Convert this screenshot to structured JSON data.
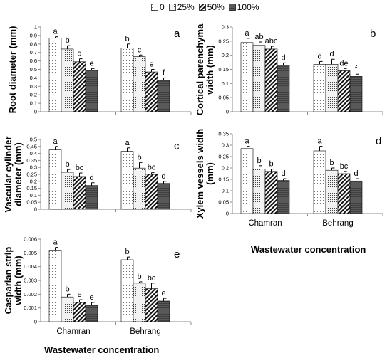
{
  "legend": [
    {
      "label": "0",
      "pattern": "dots-light"
    },
    {
      "label": "25%",
      "pattern": "dots-dense"
    },
    {
      "label": "50%",
      "pattern": "diag"
    },
    {
      "label": "100%",
      "pattern": "dark"
    }
  ],
  "colors": {
    "dots-light": "#ffffff",
    "dots-dense": "#f2f2f2",
    "diag": "#ffffff",
    "dark": "#595959",
    "axis": "#8c8c8c",
    "grid": "#000000"
  },
  "x_axis_titles": [
    "Wastewater concentration",
    "Wastewater concentration"
  ],
  "chart_data": [
    {
      "id": "a",
      "type": "bar",
      "panel_letter": "a",
      "ylabel": "Root diameter (mm)",
      "categories": [
        "Chamran",
        "Behrang"
      ],
      "show_category_labels": false,
      "ylim": [
        0,
        1
      ],
      "yticks": [
        "0",
        "0.1",
        "0.2",
        "0.3",
        "0.4",
        "0.5",
        "0.6",
        "0.7",
        "0.8",
        "0.9",
        "1"
      ],
      "series": [
        {
          "name": "0",
          "values": [
            0.87,
            0.75
          ],
          "errors": [
            0.015,
            0.05
          ],
          "letters": [
            "a",
            "b"
          ]
        },
        {
          "name": "25%",
          "values": [
            0.74,
            0.65
          ],
          "errors": [
            0.04,
            0.02
          ],
          "letters": [
            "b",
            "c"
          ]
        },
        {
          "name": "50%",
          "values": [
            0.59,
            0.47
          ],
          "errors": [
            0.035,
            0.03
          ],
          "letters": [
            "d",
            "e"
          ]
        },
        {
          "name": "100%",
          "values": [
            0.49,
            0.37
          ],
          "errors": [
            0.02,
            0.03
          ],
          "letters": [
            "e",
            "f"
          ]
        }
      ]
    },
    {
      "id": "b",
      "type": "bar",
      "panel_letter": "b",
      "ylabel": "Cortical parenchyma width (mm)",
      "categories": [
        "Chamran",
        "Behrang"
      ],
      "show_category_labels": false,
      "ylim": [
        0,
        0.3
      ],
      "yticks": [
        "0",
        "0.05",
        "0.1",
        "0.15",
        "0.2",
        "0.25",
        "0.3"
      ],
      "series": [
        {
          "name": "0",
          "values": [
            0.245,
            0.168
          ],
          "errors": [
            0.015,
            0.01
          ],
          "letters": [
            "a",
            "d"
          ]
        },
        {
          "name": "25%",
          "values": [
            0.235,
            0.168
          ],
          "errors": [
            0.012,
            0.018
          ],
          "letters": [
            "ab",
            "d"
          ]
        },
        {
          "name": "50%",
          "values": [
            0.222,
            0.145
          ],
          "errors": [
            0.01,
            0.008
          ],
          "letters": [
            "abc",
            "de"
          ]
        },
        {
          "name": "100%",
          "values": [
            0.165,
            0.125
          ],
          "errors": [
            0.008,
            0.008
          ],
          "letters": [
            "d",
            "f"
          ]
        }
      ]
    },
    {
      "id": "c",
      "type": "bar",
      "panel_letter": "c",
      "ylabel": "Vascular cylinder diameter (mm)",
      "categories": [
        "Chamran",
        "Behrang"
      ],
      "show_category_labels": false,
      "ylim": [
        0,
        0.5
      ],
      "yticks": [
        "0",
        "0.05",
        "0.1",
        "0.15",
        "0.2",
        "0.25",
        "0.3",
        "0.35",
        "0.4",
        "0.45",
        "0.5"
      ],
      "series": [
        {
          "name": "0",
          "values": [
            0.425,
            0.415
          ],
          "errors": [
            0.025,
            0.025
          ],
          "letters": [
            "a",
            "a"
          ]
        },
        {
          "name": "25%",
          "values": [
            0.265,
            0.295
          ],
          "errors": [
            0.02,
            0.04
          ],
          "letters": [
            "b",
            "b"
          ]
        },
        {
          "name": "50%",
          "values": [
            0.235,
            0.25
          ],
          "errors": [
            0.025,
            0.012
          ],
          "letters": [
            "bc",
            "bc"
          ]
        },
        {
          "name": "100%",
          "values": [
            0.17,
            0.185
          ],
          "errors": [
            0.02,
            0.015
          ],
          "letters": [
            "d",
            "d"
          ]
        }
      ]
    },
    {
      "id": "d",
      "type": "bar",
      "panel_letter": "d",
      "ylabel": "Xylem vessels width (mm)",
      "categories": [
        "Chamran",
        "Behrang"
      ],
      "show_category_labels": true,
      "ylim": [
        0,
        0.35
      ],
      "yticks": [
        "0",
        "0.05",
        "0.1",
        "0.15",
        "0.2",
        "0.25",
        "0.3",
        "0.35"
      ],
      "series": [
        {
          "name": "0",
          "values": [
            0.285,
            0.275
          ],
          "errors": [
            0.01,
            0.02
          ],
          "letters": [
            "a",
            "a"
          ]
        },
        {
          "name": "25%",
          "values": [
            0.195,
            0.19
          ],
          "errors": [
            0.015,
            0.01
          ],
          "letters": [
            "b",
            "b"
          ]
        },
        {
          "name": "50%",
          "values": [
            0.185,
            0.175
          ],
          "errors": [
            0.01,
            0.01
          ],
          "letters": [
            "b",
            "bc"
          ]
        },
        {
          "name": "100%",
          "values": [
            0.145,
            0.143
          ],
          "errors": [
            0.008,
            0.01
          ],
          "letters": [
            "d",
            "d"
          ]
        }
      ]
    },
    {
      "id": "e",
      "type": "bar",
      "panel_letter": "e",
      "ylabel": "Casparian strip width (mm)",
      "categories": [
        "Chamran",
        "Behrang"
      ],
      "show_category_labels": true,
      "ylim": [
        0,
        0.006
      ],
      "yticks": [
        "0",
        "0.001",
        "0.002",
        "0.003",
        "0.004",
        "0.005",
        "0.006"
      ],
      "series": [
        {
          "name": "0",
          "values": [
            0.0052,
            0.0045
          ],
          "errors": [
            0.0002,
            0.0002
          ],
          "letters": [
            "a",
            "b"
          ]
        },
        {
          "name": "25%",
          "values": [
            0.0018,
            0.0028
          ],
          "errors": [
            0.0002,
            0.0001
          ],
          "letters": [
            "b",
            "b"
          ]
        },
        {
          "name": "50%",
          "values": [
            0.0014,
            0.0024
          ],
          "errors": [
            0.0002,
            0.0004
          ],
          "letters": [
            "e",
            "bc"
          ]
        },
        {
          "name": "100%",
          "values": [
            0.0012,
            0.0015
          ],
          "errors": [
            0.0002,
            0.0002
          ],
          "letters": [
            "e",
            "e"
          ]
        }
      ]
    }
  ]
}
